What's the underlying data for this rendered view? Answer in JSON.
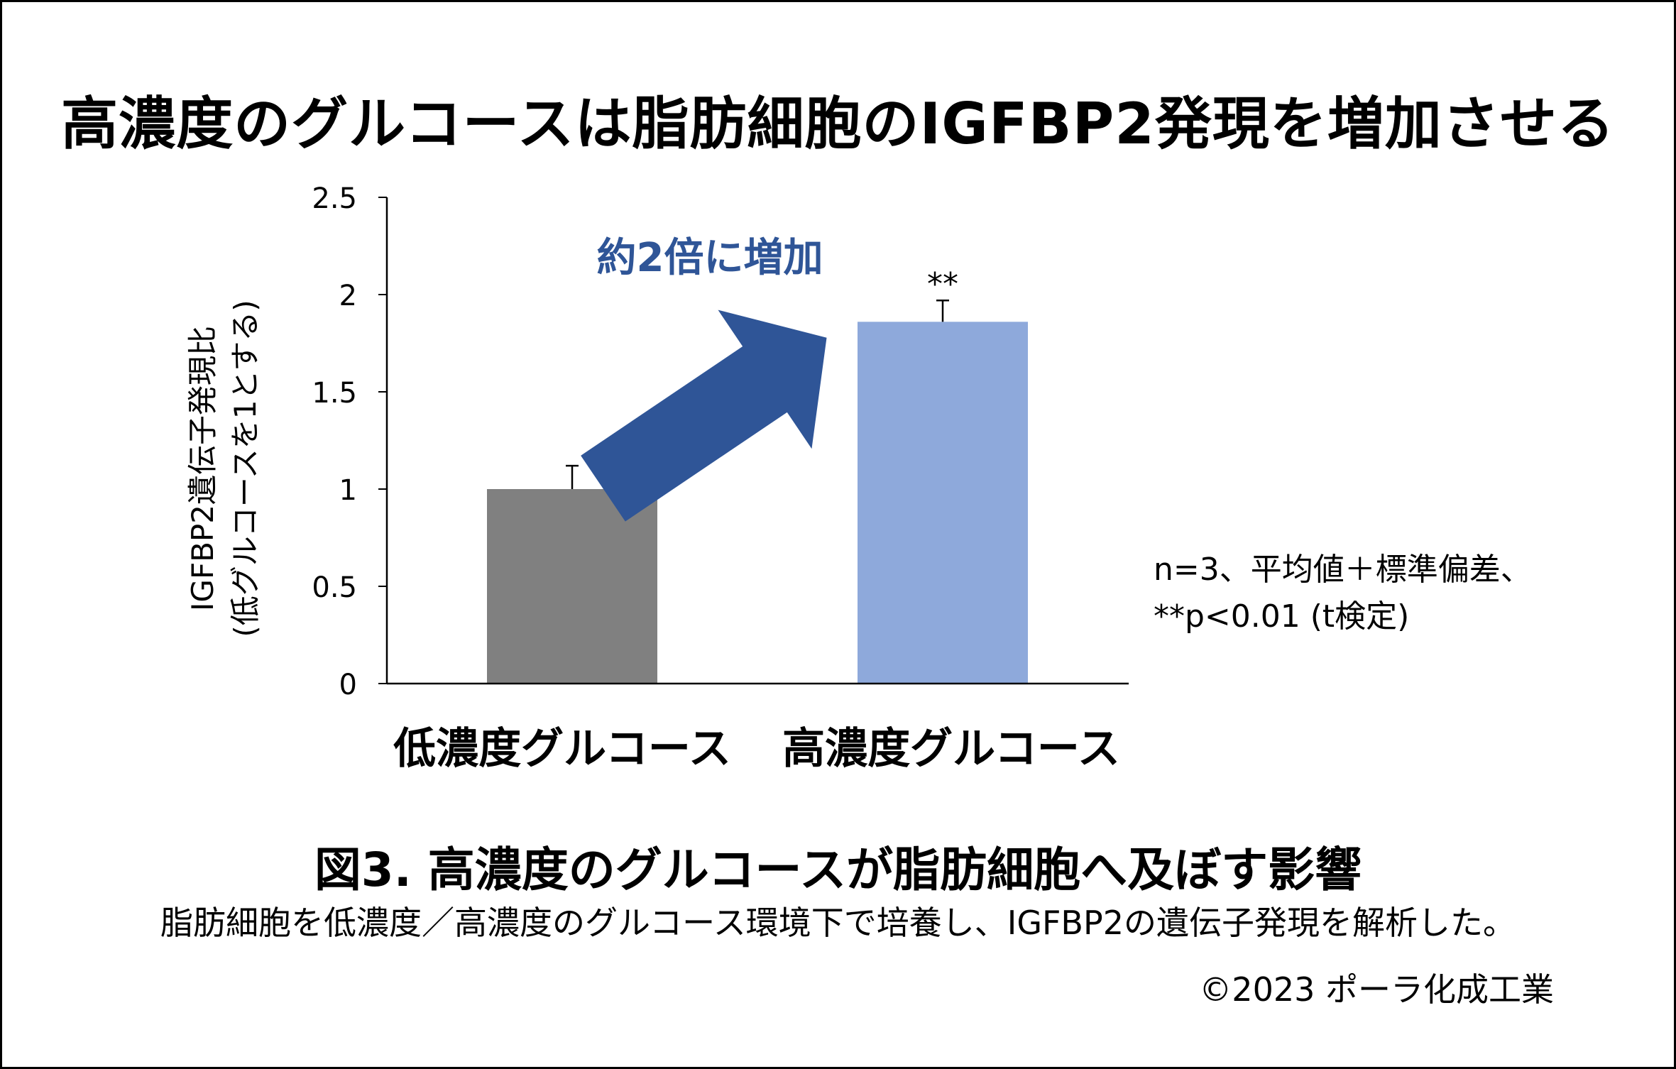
{
  "title": "高濃度のグルコースは脂肪細胞のIGFBP2発現を増加させる",
  "colors": {
    "low_bar": "#808080",
    "high_bar": "#8EA9DB",
    "arrow": "#2F5597",
    "annotation_text": "#2F5597"
  },
  "chart_data": {
    "type": "bar",
    "categories": [
      "低濃度グルコース",
      "高濃度グルコース"
    ],
    "values": [
      1.0,
      1.86
    ],
    "error": [
      0.12,
      0.11
    ],
    "significance": [
      "",
      "**"
    ],
    "ylabel_lines": [
      "IGFBP2遺伝子発現比",
      "(低グルコースを1とする)"
    ],
    "ylim": [
      0,
      2.5
    ],
    "y_ticks": [
      "0",
      "0.5",
      "1",
      "1.5",
      "2",
      "2.5"
    ],
    "y_tick_values": [
      0,
      0.5,
      1,
      1.5,
      2,
      2.5
    ],
    "annotation": "約2倍に増加",
    "grid": false,
    "legend": "none"
  },
  "note": {
    "line1": "n=3、平均値＋標準偏差、",
    "line2": "**p<0.01 (t検定)"
  },
  "figure_title": "図3. 高濃度のグルコースが脂肪細胞へ及ぼす影響",
  "figure_caption": "脂肪細胞を低濃度／高濃度のグルコース環境下で培養し、IGFBP2の遺伝子発現を解析した。",
  "copyright": "©2023 ポーラ化成工業"
}
